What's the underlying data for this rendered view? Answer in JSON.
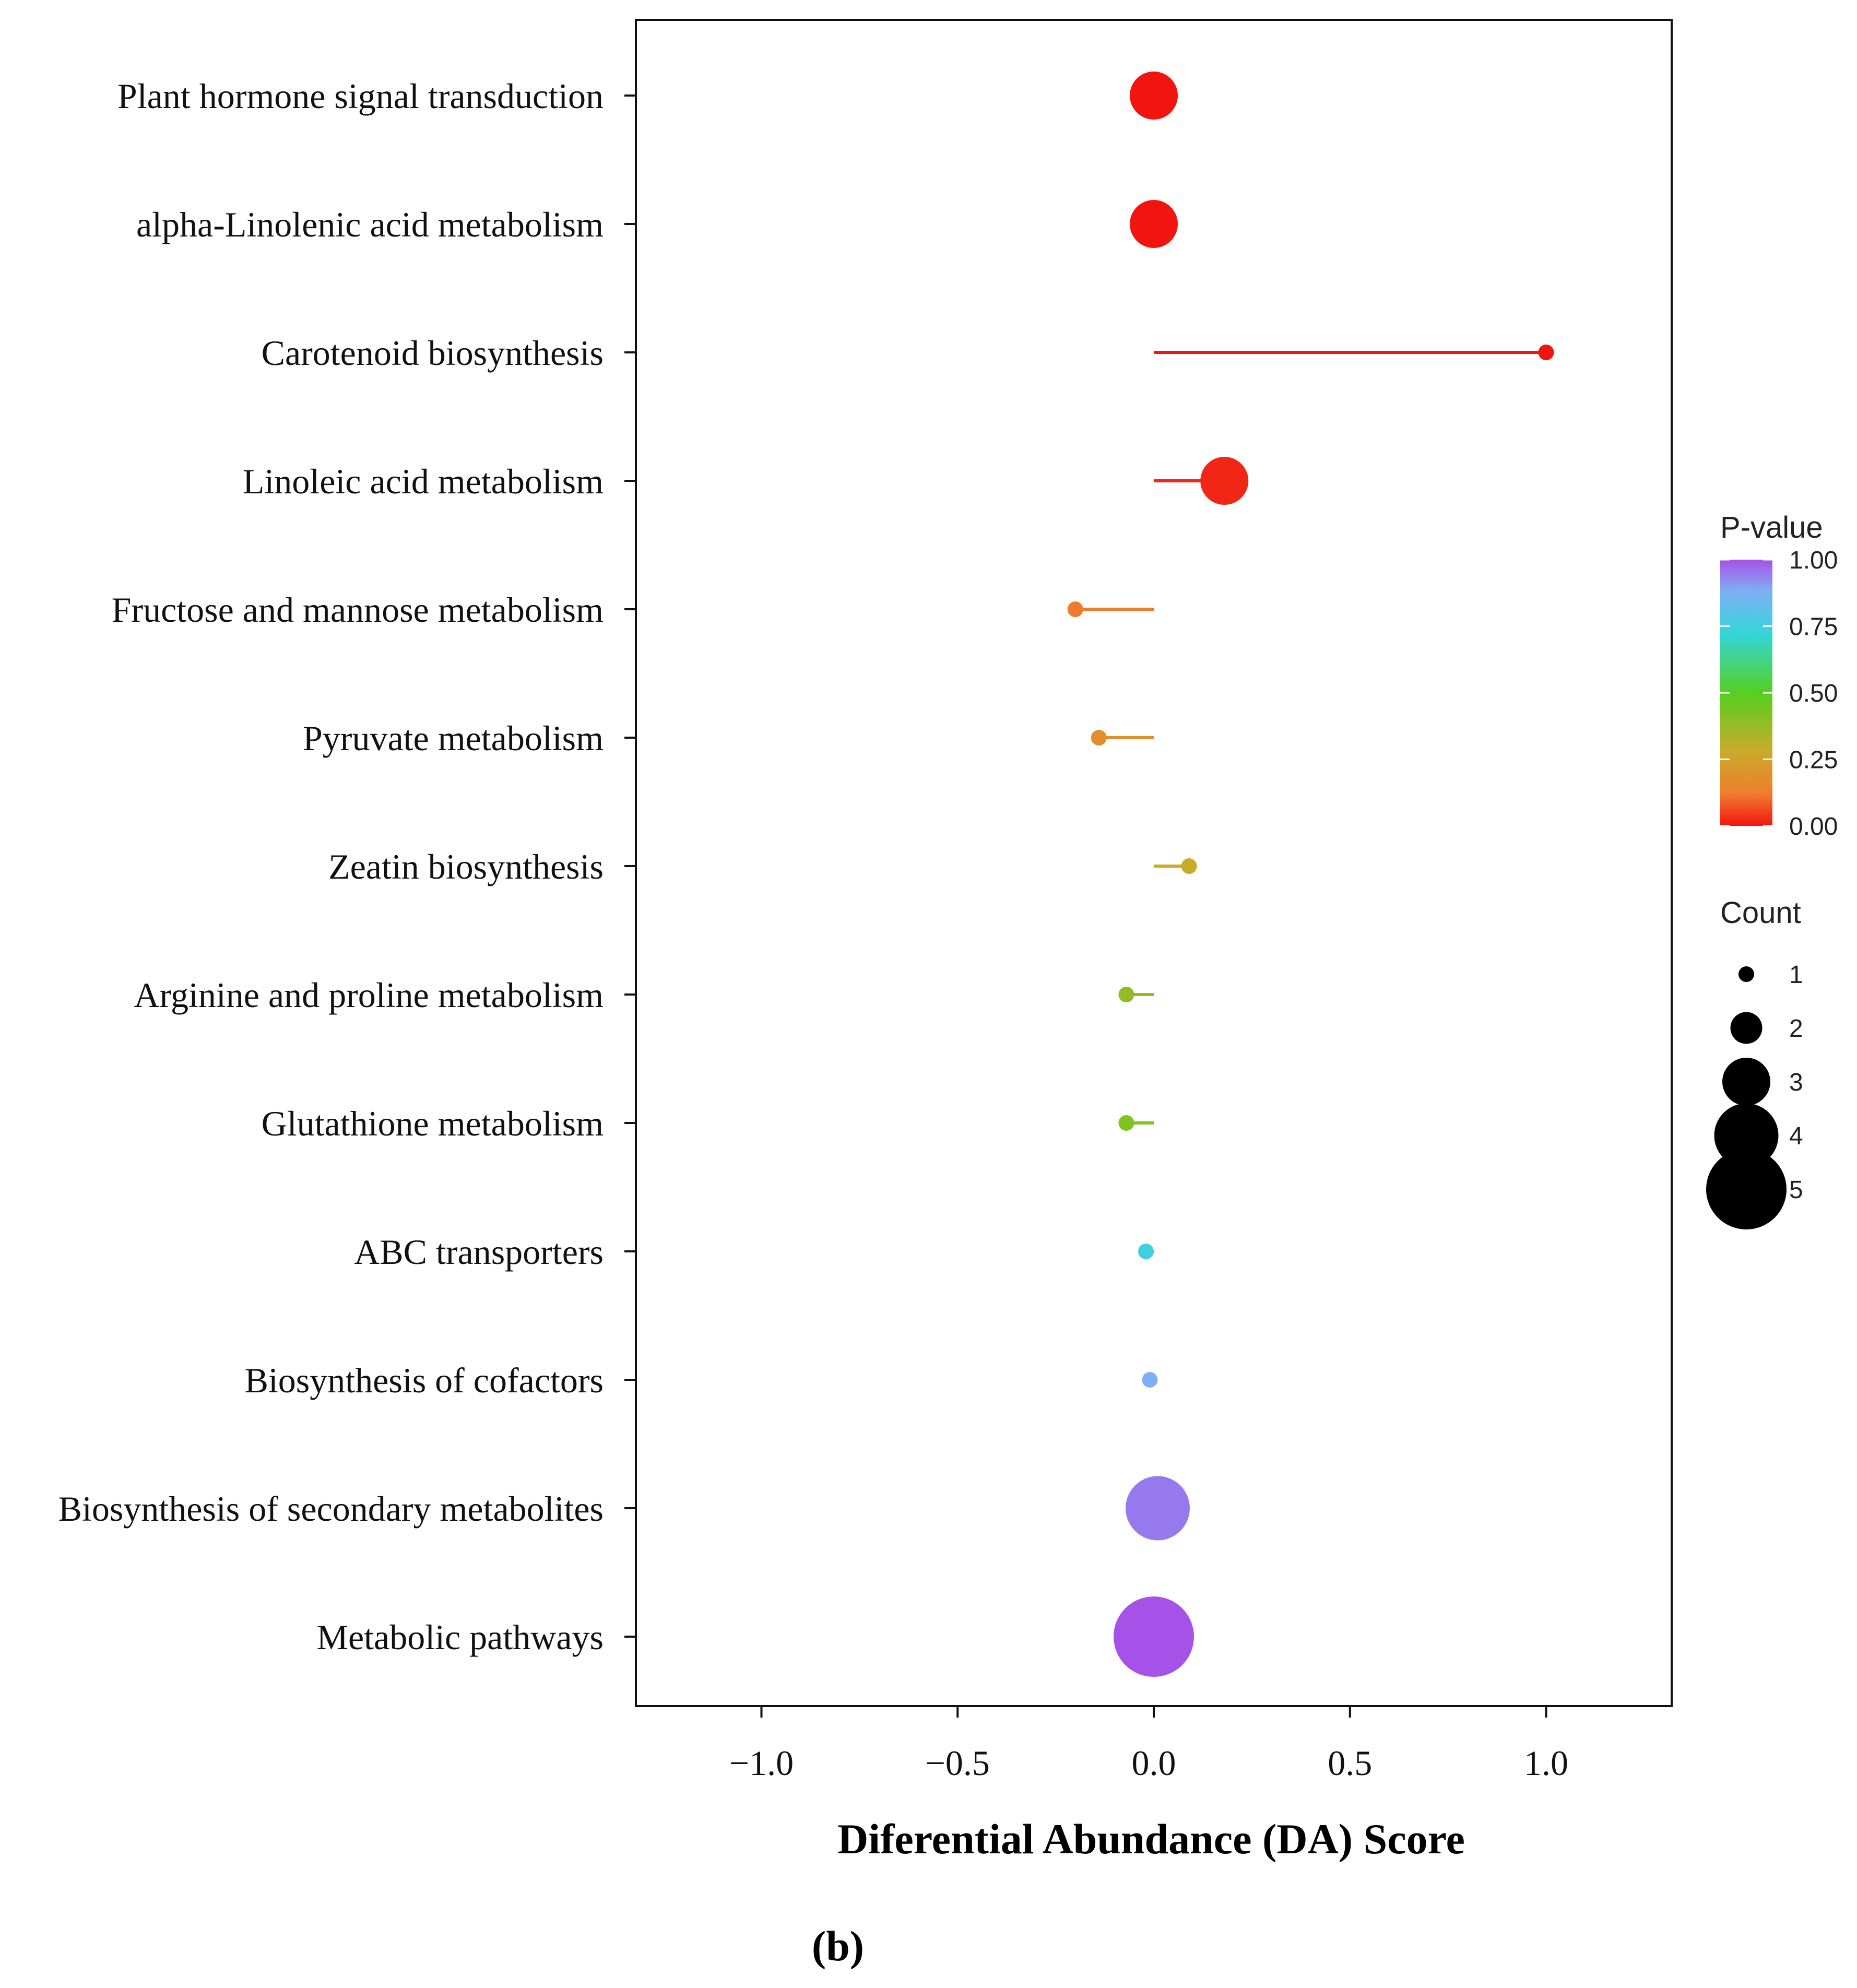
{
  "chart_data": {
    "type": "lollipop",
    "panel_label": "(b)",
    "xlabel": "Diferential Abundance (DA) Score",
    "ylabel": "",
    "xlim": [
      -1.32,
      1.32
    ],
    "xticks": [
      -1.0,
      -0.5,
      0.0,
      0.5,
      1.0
    ],
    "xtick_labels": [
      "−1.0",
      "−0.5",
      "0.0",
      "0.5",
      "1.0"
    ],
    "categories": [
      "Plant hormone signal transduction",
      "alpha-Linolenic acid metabolism",
      "Carotenoid biosynthesis",
      "Linoleic acid metabolism",
      "Fructose and mannose metabolism",
      "Pyruvate metabolism",
      "Zeatin biosynthesis",
      "Arginine and proline metabolism",
      "Glutathione metabolism",
      "ABC transporters",
      "Biosynthesis of cofactors",
      "Biosynthesis of secondary metabolites",
      "Metabolic pathways"
    ],
    "da_score": [
      0.0,
      0.0,
      1.0,
      0.18,
      -0.2,
      -0.14,
      0.09,
      -0.07,
      -0.07,
      -0.02,
      -0.01,
      0.01,
      0.0
    ],
    "count": [
      3,
      3,
      1,
      3,
      1,
      1,
      1,
      1,
      1,
      1,
      1,
      4,
      5
    ],
    "pvalue": [
      0.0,
      0.0,
      0.0,
      0.02,
      0.12,
      0.18,
      0.28,
      0.38,
      0.42,
      0.75,
      0.88,
      0.95,
      1.0
    ],
    "legend_pvalue": {
      "title": "P-value",
      "ticks": [
        1.0,
        0.75,
        0.5,
        0.25,
        0.0
      ],
      "tick_labels": [
        "1.00",
        "0.75",
        "0.50",
        "0.25",
        "0.00"
      ],
      "colors": [
        "#f2150f",
        "#ef7c2e",
        "#c9ab2a",
        "#55cf20",
        "#33d6d9",
        "#7fb0f5",
        "#a651e8"
      ]
    },
    "legend_count": {
      "title": "Count",
      "values": [
        1,
        2,
        3,
        4,
        5
      ],
      "labels": [
        "1",
        "2",
        "3",
        "4",
        "5"
      ]
    },
    "placement": {
      "legends": "right"
    }
  }
}
